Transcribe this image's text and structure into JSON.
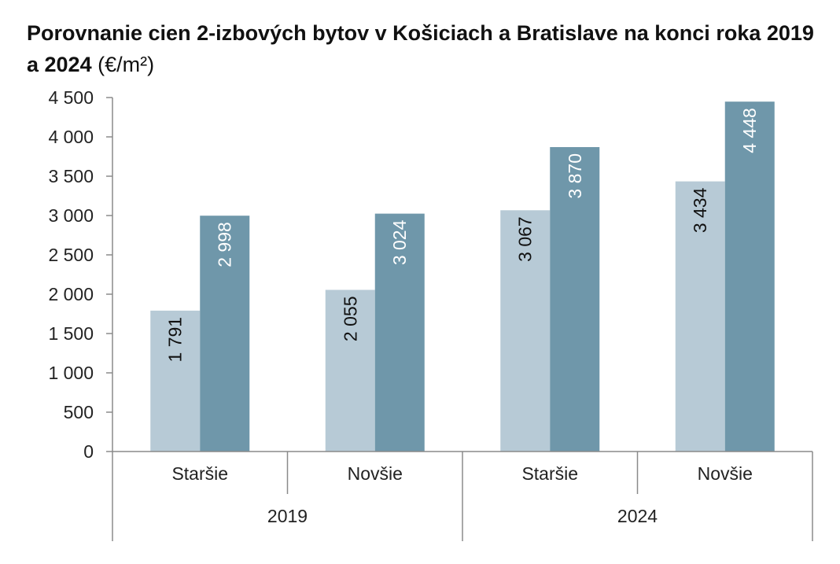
{
  "title": {
    "main": "Porovnanie cien 2-izbových bytov v Košiciach a Bratislave na konci roka 2019 a 2024",
    "unit": "(€/m²)"
  },
  "colors": {
    "series_1": "#b7cad6",
    "series_2": "#6f97aa",
    "label_on_light": "#111111",
    "label_on_dark": "#ffffff",
    "axis": "#8a8a8a"
  },
  "chart_data": {
    "type": "bar",
    "ylim": [
      0,
      4500
    ],
    "yticks": [
      {
        "value": 0,
        "label": "0"
      },
      {
        "value": 500,
        "label": "500"
      },
      {
        "value": 1000,
        "label": "1 000"
      },
      {
        "value": 1500,
        "label": "1 500"
      },
      {
        "value": 2000,
        "label": "2 000"
      },
      {
        "value": 2500,
        "label": "2 500"
      },
      {
        "value": 3000,
        "label": "3 000"
      },
      {
        "value": 3500,
        "label": "3 500"
      },
      {
        "value": 4000,
        "label": "4 000"
      },
      {
        "value": 4500,
        "label": "4 500"
      }
    ],
    "groups": [
      {
        "label": "2019",
        "categories": [
          "Staršie",
          "Novšie"
        ]
      },
      {
        "label": "2024",
        "categories": [
          "Staršie",
          "Novšie"
        ]
      }
    ],
    "categories": [
      "Staršie",
      "Novšie",
      "Staršie",
      "Novšie"
    ],
    "series": [
      {
        "values": [
          1791,
          2055,
          3067,
          3434
        ],
        "labels": [
          "1 791",
          "2 055",
          "3 067",
          "3 434"
        ]
      },
      {
        "values": [
          2998,
          3024,
          3870,
          4448
        ],
        "labels": [
          "2 998",
          "3 024",
          "3 870",
          "4 448"
        ]
      }
    ],
    "legend": "none",
    "grid": false
  }
}
